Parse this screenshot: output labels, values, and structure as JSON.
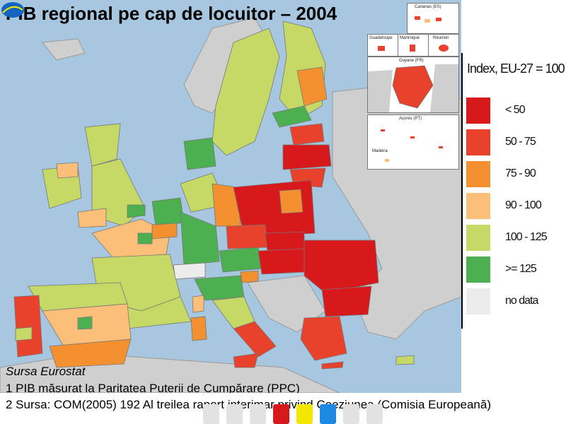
{
  "title": "PIB regional pe cap de locuitor – 2004",
  "legend": {
    "title": "Index, EU-27 = 100",
    "items": [
      {
        "label": "< 50",
        "color": "#d7191c"
      },
      {
        "label": "50 - 75",
        "color": "#e8412c"
      },
      {
        "label": "75 - 90",
        "color": "#f39130"
      },
      {
        "label": "90 - 100",
        "color": "#fbbf7a"
      },
      {
        "label": "100 - 125",
        "color": "#c6d865"
      },
      {
        "label": ">= 125",
        "color": "#4caf50"
      },
      {
        "label": "no data",
        "color": "#ececec"
      }
    ]
  },
  "insets": {
    "canarias": "Canarias (ES)",
    "guadeloupe": "Guadeloupe",
    "martinique": "Martinique",
    "reunion": "Réunion",
    "guyane": "Guyane (FR)",
    "acores": "Açores (PT)",
    "madeira": "Madeira"
  },
  "notes": {
    "source": "Sursa Eurostat",
    "note1": "1 PIB măsurat la Paritatea Puterii de Cumpărare (PPC)",
    "note2": "2 Sursa: COM(2005) 192 Al treilea raport interimar privind Coeziunea (Comisia Europeană)"
  },
  "navbar_colors": [
    "#e2e2e2",
    "#e2e2e2",
    "#e2e2e2",
    "#d7191c",
    "#f3e600",
    "#1e88e5",
    "#e2e2e2",
    "#e2e2e2"
  ],
  "colors": {
    "sea": "#a7c7e0",
    "non_eu": "#cfcfcf"
  }
}
